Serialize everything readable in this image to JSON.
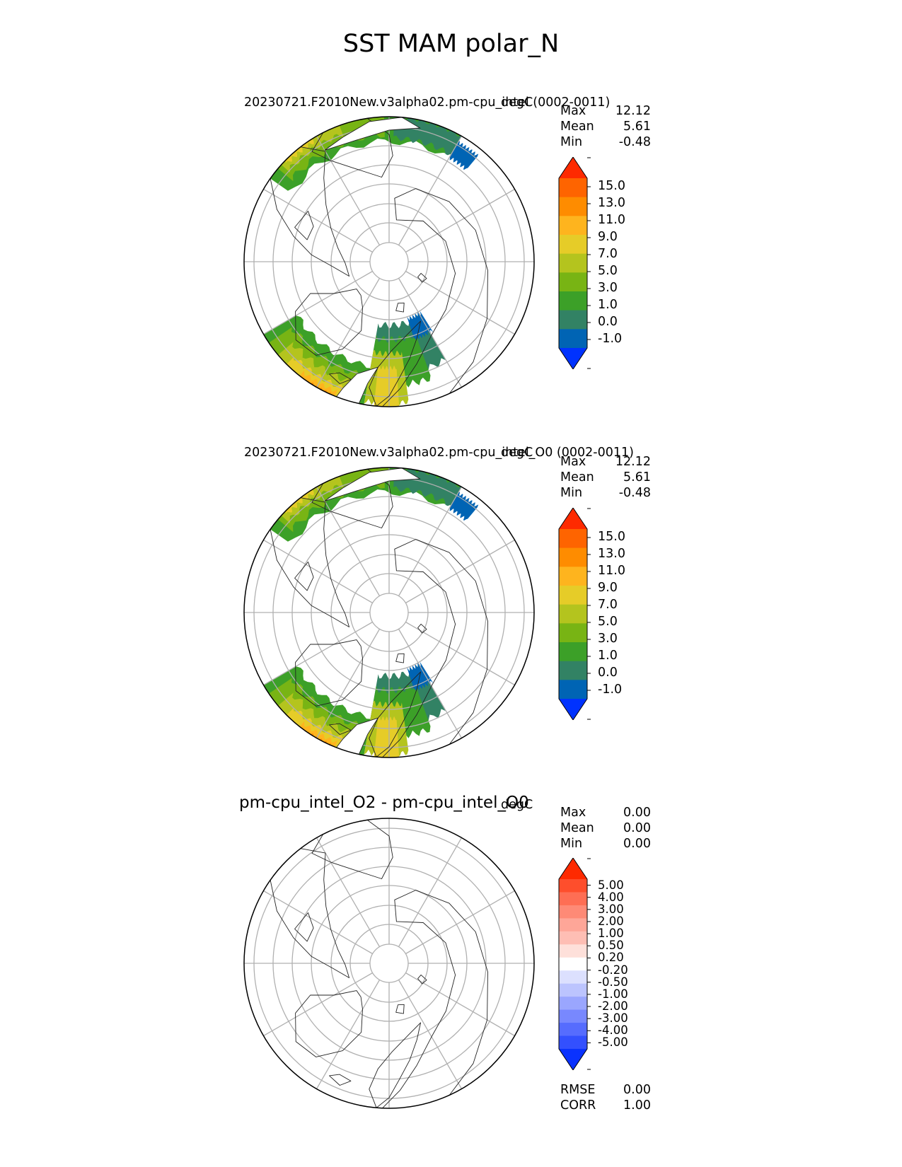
{
  "title": "SST MAM polar_N",
  "panels": [
    {
      "title": "20230721.F2010New.v3alpha02.pm-cpu_intel (0002-0011)",
      "units": "degC",
      "stats": [
        {
          "label": "Max",
          "value": "12.12"
        },
        {
          "label": "Mean",
          "value": "5.61"
        },
        {
          "label": "Min",
          "value": "-0.48"
        }
      ],
      "colorbar": {
        "ticks": [
          "15.0",
          "13.0",
          "11.0",
          "9.0",
          "7.0",
          "5.0",
          "3.0",
          "1.0",
          "0.0",
          "-1.0"
        ],
        "colors": [
          "#fe2a00",
          "#fe6400",
          "#fe8c00",
          "#feb41e",
          "#e6cc28",
          "#b4c41e",
          "#78b414",
          "#3ca028",
          "#328264",
          "#0064b4",
          "#0032fe"
        ]
      }
    },
    {
      "title": "20230721.F2010New.v3alpha02.pm-cpu_intel_O0 (0002-0011)",
      "units": "degC",
      "stats": [
        {
          "label": "Max",
          "value": "12.12"
        },
        {
          "label": "Mean",
          "value": "5.61"
        },
        {
          "label": "Min",
          "value": "-0.48"
        }
      ],
      "colorbar": {
        "ticks": [
          "15.0",
          "13.0",
          "11.0",
          "9.0",
          "7.0",
          "5.0",
          "3.0",
          "1.0",
          "0.0",
          "-1.0"
        ],
        "colors": [
          "#fe2a00",
          "#fe6400",
          "#fe8c00",
          "#feb41e",
          "#e6cc28",
          "#b4c41e",
          "#78b414",
          "#3ca028",
          "#328264",
          "#0064b4",
          "#0032fe"
        ]
      }
    },
    {
      "title": "pm-cpu_intel_O2 - pm-cpu_intel_O0",
      "units": "degC",
      "stats": [
        {
          "label": "Max",
          "value": "0.00"
        },
        {
          "label": "Mean",
          "value": "0.00"
        },
        {
          "label": "Min",
          "value": "0.00"
        }
      ],
      "colorbar": {
        "ticks": [
          "5.00",
          "4.00",
          "3.00",
          "2.00",
          "1.00",
          "0.50",
          "0.20",
          "-0.20",
          "-0.50",
          "-1.00",
          "-2.00",
          "-3.00",
          "-4.00",
          "-5.00"
        ],
        "colors": [
          "#fe2a00",
          "#fe4e2c",
          "#fe6e54",
          "#fe8a76",
          "#fea698",
          "#febeb4",
          "#fee0da",
          "#ffffff",
          "#dce0fe",
          "#bcc4fe",
          "#9aa6fe",
          "#7888fe",
          "#566cfe",
          "#3350fe",
          "#0a32fe"
        ]
      },
      "footer_stats": [
        {
          "label": "RMSE",
          "value": "0.00"
        },
        {
          "label": "CORR",
          "value": "1.00"
        }
      ]
    }
  ]
}
